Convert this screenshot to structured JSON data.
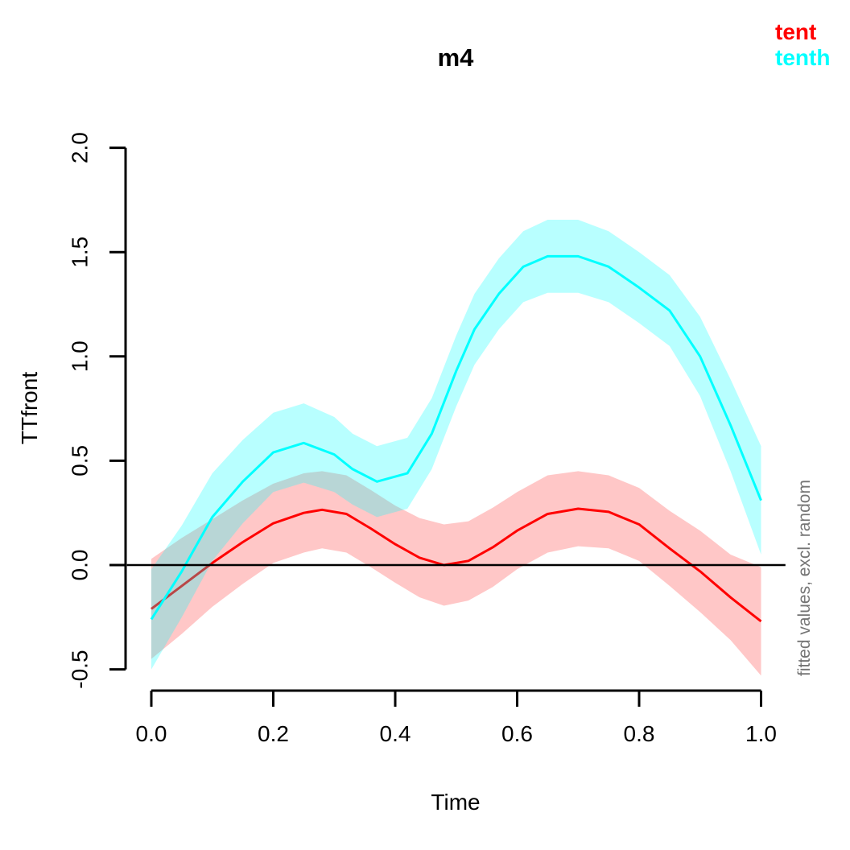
{
  "figure": {
    "background": "#FFFFFF"
  },
  "chart_data": {
    "type": "line",
    "title": "m4",
    "xlabel": "Time",
    "ylabel": "TTfront",
    "right_annotation": {
      "text": "fitted values, excl. random",
      "color": "#757575"
    },
    "xlim": [
      0.0,
      1.0
    ],
    "ylim": [
      -0.5,
      2.0
    ],
    "x_ticks": {
      "values": [
        0.0,
        0.2,
        0.4,
        0.6,
        0.8,
        1.0
      ],
      "labels": [
        "0.0",
        "0.2",
        "0.4",
        "0.6",
        "0.8",
        "1.0"
      ]
    },
    "y_ticks": {
      "values": [
        -0.5,
        0.0,
        0.5,
        1.0,
        1.5,
        2.0
      ],
      "labels": [
        "-0.5",
        "0.0",
        "0.5",
        "1.0",
        "1.5",
        "2.0"
      ]
    },
    "grid": false,
    "axis_color": "#000000",
    "reference_line_y": 0,
    "legend_position": "top-right",
    "legend": {
      "items": [
        {
          "label": "tent",
          "color": "#FF0000"
        },
        {
          "label": "tenth",
          "color": "#00FFFF"
        }
      ]
    },
    "series": [
      {
        "name": "tent",
        "color": "#FF0000",
        "band_opacity": 0.22,
        "x": [
          0.0,
          0.05,
          0.1,
          0.15,
          0.2,
          0.25,
          0.28,
          0.32,
          0.36,
          0.4,
          0.44,
          0.48,
          0.52,
          0.56,
          0.6,
          0.65,
          0.7,
          0.75,
          0.8,
          0.85,
          0.9,
          0.95,
          1.0
        ],
        "y": [
          -0.21,
          -0.1,
          0.01,
          0.11,
          0.2,
          0.25,
          0.265,
          0.245,
          0.175,
          0.1,
          0.035,
          0.0,
          0.02,
          0.085,
          0.165,
          0.245,
          0.27,
          0.255,
          0.195,
          0.08,
          -0.03,
          -0.155,
          -0.27
        ],
        "upper": [
          0.03,
          0.13,
          0.22,
          0.31,
          0.39,
          0.44,
          0.45,
          0.43,
          0.36,
          0.285,
          0.225,
          0.195,
          0.21,
          0.275,
          0.35,
          0.43,
          0.45,
          0.43,
          0.37,
          0.26,
          0.165,
          0.05,
          -0.01
        ],
        "lower": [
          -0.45,
          -0.33,
          -0.2,
          -0.09,
          0.01,
          0.06,
          0.08,
          0.06,
          -0.01,
          -0.085,
          -0.155,
          -0.195,
          -0.17,
          -0.105,
          -0.02,
          0.06,
          0.09,
          0.08,
          0.02,
          -0.1,
          -0.225,
          -0.36,
          -0.53
        ]
      },
      {
        "name": "tenth",
        "color": "#00FFFF",
        "band_opacity": 0.28,
        "x": [
          0.0,
          0.05,
          0.1,
          0.15,
          0.2,
          0.25,
          0.3,
          0.33,
          0.37,
          0.42,
          0.46,
          0.5,
          0.53,
          0.57,
          0.61,
          0.65,
          0.7,
          0.75,
          0.8,
          0.85,
          0.9,
          0.95,
          1.0
        ],
        "y": [
          -0.26,
          -0.03,
          0.23,
          0.4,
          0.54,
          0.585,
          0.53,
          0.46,
          0.4,
          0.44,
          0.63,
          0.93,
          1.13,
          1.3,
          1.43,
          1.48,
          1.48,
          1.43,
          1.33,
          1.22,
          1.0,
          0.67,
          0.31
        ],
        "upper": [
          -0.02,
          0.19,
          0.44,
          0.6,
          0.73,
          0.775,
          0.71,
          0.63,
          0.57,
          0.61,
          0.8,
          1.1,
          1.3,
          1.47,
          1.6,
          1.655,
          1.655,
          1.6,
          1.5,
          1.39,
          1.19,
          0.89,
          0.57
        ],
        "lower": [
          -0.5,
          -0.25,
          0.02,
          0.2,
          0.35,
          0.395,
          0.35,
          0.29,
          0.23,
          0.27,
          0.46,
          0.76,
          0.96,
          1.13,
          1.26,
          1.305,
          1.305,
          1.26,
          1.16,
          1.05,
          0.81,
          0.45,
          0.05
        ]
      }
    ]
  }
}
